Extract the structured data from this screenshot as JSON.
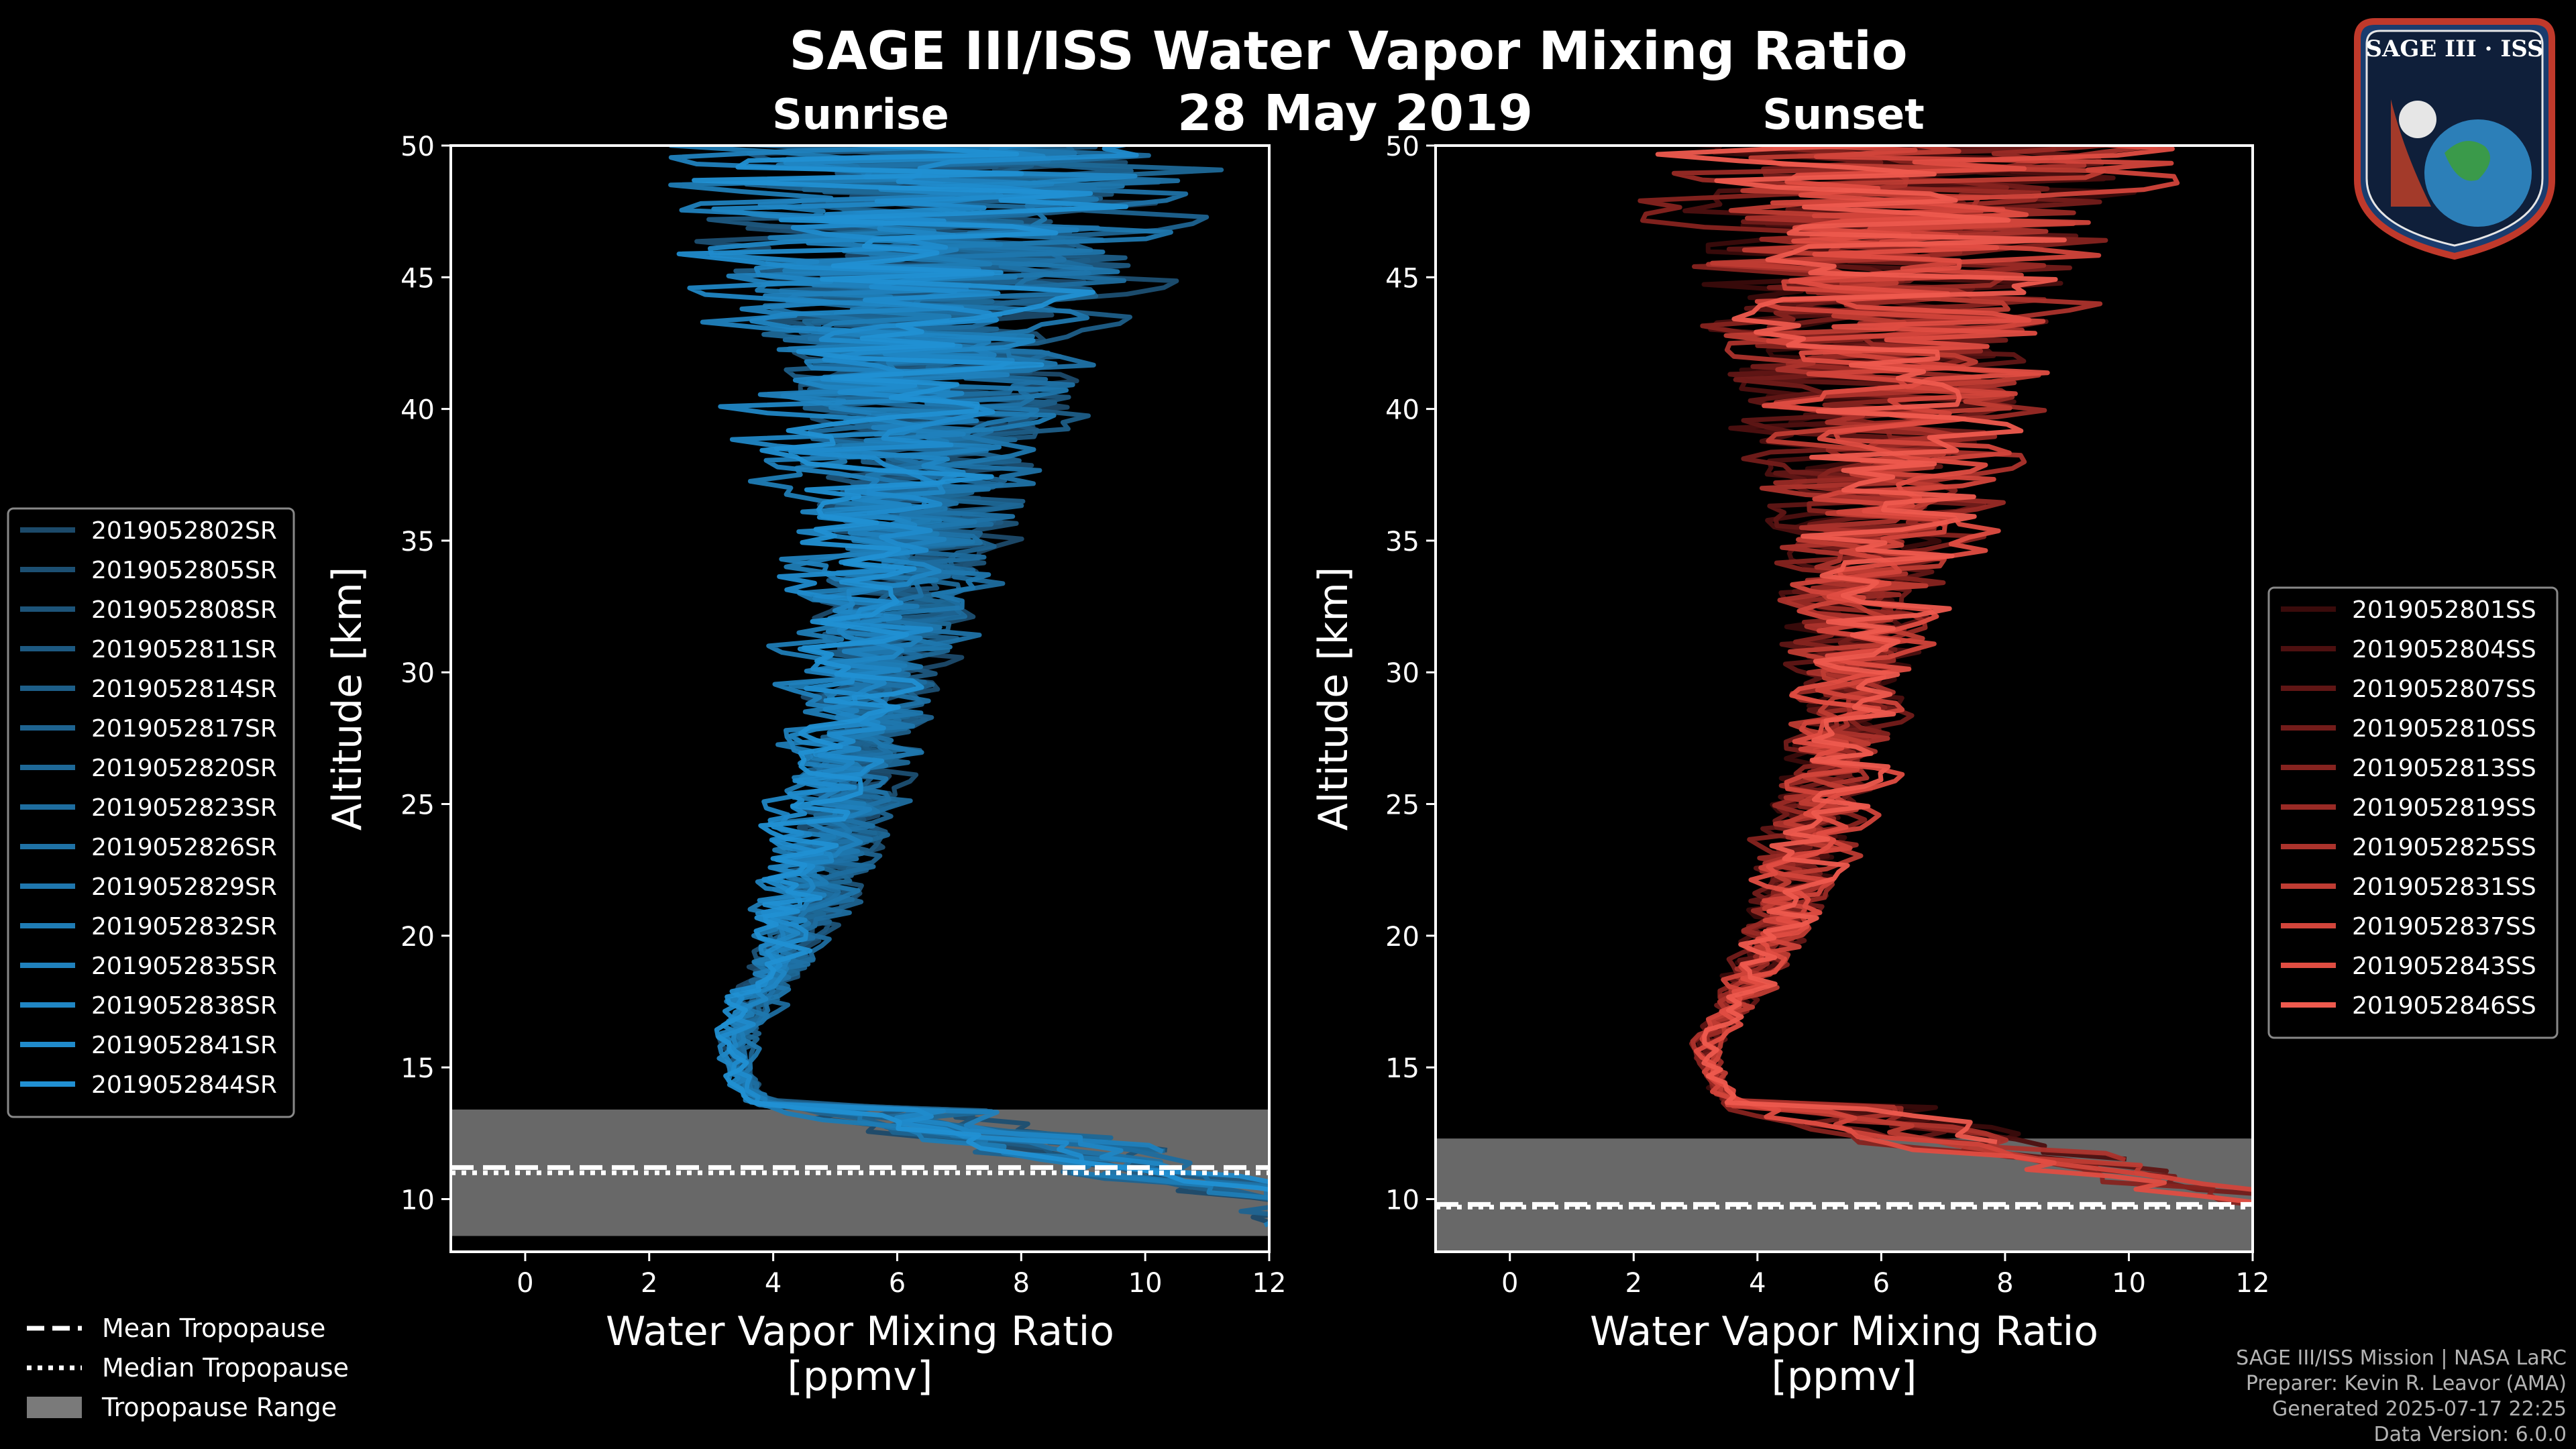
{
  "figure": {
    "title": "SAGE III/ISS Water Vapor Mixing Ratio",
    "date": "28 May 2019",
    "logo_text": "SAGE III · ISS",
    "colors": {
      "background": "#000000",
      "sunrise": "#1e90d2",
      "sunset": "#e8544a",
      "tropopause_fill": "#7a7a7a"
    }
  },
  "legend_common": [
    {
      "label": "Mean Tropopause",
      "style": "dashed"
    },
    {
      "label": "Median Tropopause",
      "style": "dotted"
    },
    {
      "label": "Tropopause Range",
      "style": "box"
    }
  ],
  "footer": {
    "line1": "SAGE III/ISS Mission | NASA LaRC",
    "line2": "Preparer: Kevin R. Leavor (AMA)",
    "line3": "Generated 2025-07-17 22:25",
    "line4": "Data Version: 6.0.0"
  },
  "chart_data": [
    {
      "type": "line",
      "panel": "sunrise",
      "title": "Sunrise",
      "xlabel": "Water Vapor Mixing Ratio\n[ppmv]",
      "ylabel": "Altitude [km]",
      "xlim": [
        -1.2,
        12
      ],
      "ylim": [
        8,
        50
      ],
      "xticks": [
        0,
        2,
        4,
        6,
        8,
        10,
        12
      ],
      "yticks": [
        10,
        15,
        20,
        25,
        30,
        35,
        40,
        45,
        50
      ],
      "tropopause": {
        "mean": 11.2,
        "median": 11.1,
        "range": [
          8.6,
          13.4
        ]
      },
      "profile_shape": {
        "altitude_km": [
          8.5,
          10,
          11,
          12,
          13,
          14,
          15,
          16,
          17,
          18,
          20,
          22,
          24,
          26,
          28,
          30,
          32,
          34,
          36,
          38,
          40,
          42,
          44,
          46,
          48,
          50
        ],
        "mean_ppmv": [
          12.5,
          11.5,
          9.0,
          7.0,
          4.5,
          3.6,
          3.4,
          3.4,
          3.6,
          3.8,
          4.3,
          4.6,
          4.9,
          5.2,
          5.4,
          5.6,
          5.8,
          6.0,
          6.1,
          6.2,
          6.3,
          6.4,
          6.4,
          6.5,
          6.6,
          6.7
        ],
        "noise_ppmv": [
          0,
          0,
          0,
          0,
          0.5,
          0.3,
          0.3,
          0.35,
          0.45,
          0.6,
          0.8,
          1.0,
          1.1,
          1.2,
          1.3,
          1.4,
          1.6,
          1.9,
          2.3,
          2.7,
          3.1,
          3.5,
          4.0,
          4.5,
          5.0,
          5.5
        ]
      },
      "series": [
        {
          "name": "2019052802SR"
        },
        {
          "name": "2019052805SR"
        },
        {
          "name": "2019052808SR"
        },
        {
          "name": "2019052811SR"
        },
        {
          "name": "2019052814SR"
        },
        {
          "name": "2019052817SR"
        },
        {
          "name": "2019052820SR"
        },
        {
          "name": "2019052823SR"
        },
        {
          "name": "2019052826SR"
        },
        {
          "name": "2019052829SR"
        },
        {
          "name": "2019052832SR"
        },
        {
          "name": "2019052835SR"
        },
        {
          "name": "2019052838SR"
        },
        {
          "name": "2019052841SR"
        },
        {
          "name": "2019052844SR"
        }
      ],
      "colors": [
        "#1c4a6a",
        "#1c4f72",
        "#1d5479",
        "#1d5981",
        "#1d5e88",
        "#1e6390",
        "#1e6897",
        "#1e6d9f",
        "#1f72a6",
        "#1f77ae",
        "#1f7cb5",
        "#2081bd",
        "#2086c4",
        "#208bcc",
        "#2190d3"
      ]
    },
    {
      "type": "line",
      "panel": "sunset",
      "title": "Sunset",
      "xlabel": "Water Vapor Mixing Ratio\n[ppmv]",
      "ylabel": "Altitude [km]",
      "xlim": [
        -1.2,
        12
      ],
      "ylim": [
        8,
        50
      ],
      "xticks": [
        0,
        2,
        4,
        6,
        8,
        10,
        12
      ],
      "yticks": [
        10,
        15,
        20,
        25,
        30,
        35,
        40,
        45,
        50
      ],
      "tropopause": {
        "mean": 9.8,
        "median": 9.8,
        "range": [
          8.0,
          12.3
        ]
      },
      "profile_shape": {
        "altitude_km": [
          9.2,
          10,
          11,
          12,
          13,
          14,
          15,
          16,
          17,
          18,
          20,
          22,
          24,
          26,
          28,
          30,
          32,
          34,
          36,
          38,
          40,
          42,
          44,
          46,
          48,
          50
        ],
        "mean_ppmv": [
          12.5,
          11.5,
          9.0,
          6.5,
          4.2,
          3.5,
          3.3,
          3.3,
          3.6,
          3.9,
          4.4,
          4.8,
          5.1,
          5.4,
          5.6,
          5.8,
          6.0,
          6.2,
          6.3,
          6.4,
          6.5,
          6.6,
          6.6,
          6.7,
          6.8,
          6.9
        ],
        "noise_ppmv": [
          0,
          0,
          0,
          0,
          0.5,
          0.3,
          0.3,
          0.35,
          0.45,
          0.6,
          0.8,
          1.0,
          1.1,
          1.2,
          1.3,
          1.4,
          1.6,
          1.9,
          2.3,
          2.7,
          3.1,
          3.5,
          4.0,
          4.5,
          5.0,
          5.5
        ]
      },
      "series": [
        {
          "name": "2019052801SS"
        },
        {
          "name": "2019052804SS"
        },
        {
          "name": "2019052807SS"
        },
        {
          "name": "2019052810SS"
        },
        {
          "name": "2019052813SS"
        },
        {
          "name": "2019052819SS"
        },
        {
          "name": "2019052825SS"
        },
        {
          "name": "2019052831SS"
        },
        {
          "name": "2019052837SS"
        },
        {
          "name": "2019052843SS"
        },
        {
          "name": "2019052846SS"
        }
      ],
      "colors": [
        "#3a0b0b",
        "#4d1010",
        "#601615",
        "#731c1a",
        "#86231f",
        "#992a25",
        "#ac332c",
        "#bf3c33",
        "#d2453b",
        "#e04d42",
        "#ee5a4e"
      ]
    }
  ]
}
